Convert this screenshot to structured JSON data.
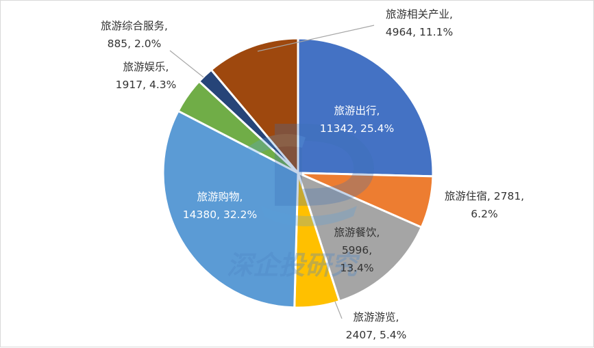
{
  "chart_data": {
    "type": "pie",
    "title": "",
    "categories": [
      "旅游出行",
      "旅游住宿",
      "旅游餐饮",
      "旅游游览",
      "旅游购物",
      "旅游娱乐",
      "旅游综合服务",
      "旅游相关产业"
    ],
    "values": [
      11342,
      2781,
      5996,
      2407,
      14380,
      1917,
      885,
      4964
    ],
    "percents": [
      "25.4%",
      "6.2%",
      "13.4%",
      "5.4%",
      "32.2%",
      "4.3%",
      "2.0%",
      "11.1%"
    ],
    "colors": [
      "#4472c4",
      "#ed7d31",
      "#a5a5a5",
      "#ffc000",
      "#5b9bd5",
      "#70ad47",
      "#264478",
      "#9e480e"
    ],
    "data_labels": [
      {
        "lines": [
          "旅游出行,",
          "11342, 25.4%"
        ]
      },
      {
        "lines": [
          "旅游住宿, 2781,",
          "6.2%"
        ]
      },
      {
        "lines": [
          "旅游餐饮,",
          "5996,",
          "13.4%"
        ]
      },
      {
        "lines": [
          "旅游游览,",
          "2407, 5.4%"
        ]
      },
      {
        "lines": [
          "旅游购物,",
          "14380, 32.2%"
        ]
      },
      {
        "lines": [
          "旅游娱乐,",
          "1917, 4.3%"
        ]
      },
      {
        "lines": [
          "旅游综合服务,",
          "885, 2.0%"
        ]
      },
      {
        "lines": [
          "旅游相关产业,",
          "4964, 11.1%"
        ]
      }
    ],
    "legend": "none"
  },
  "watermark": {
    "text": "深企投研究",
    "icon": "db-logo-watermark"
  }
}
